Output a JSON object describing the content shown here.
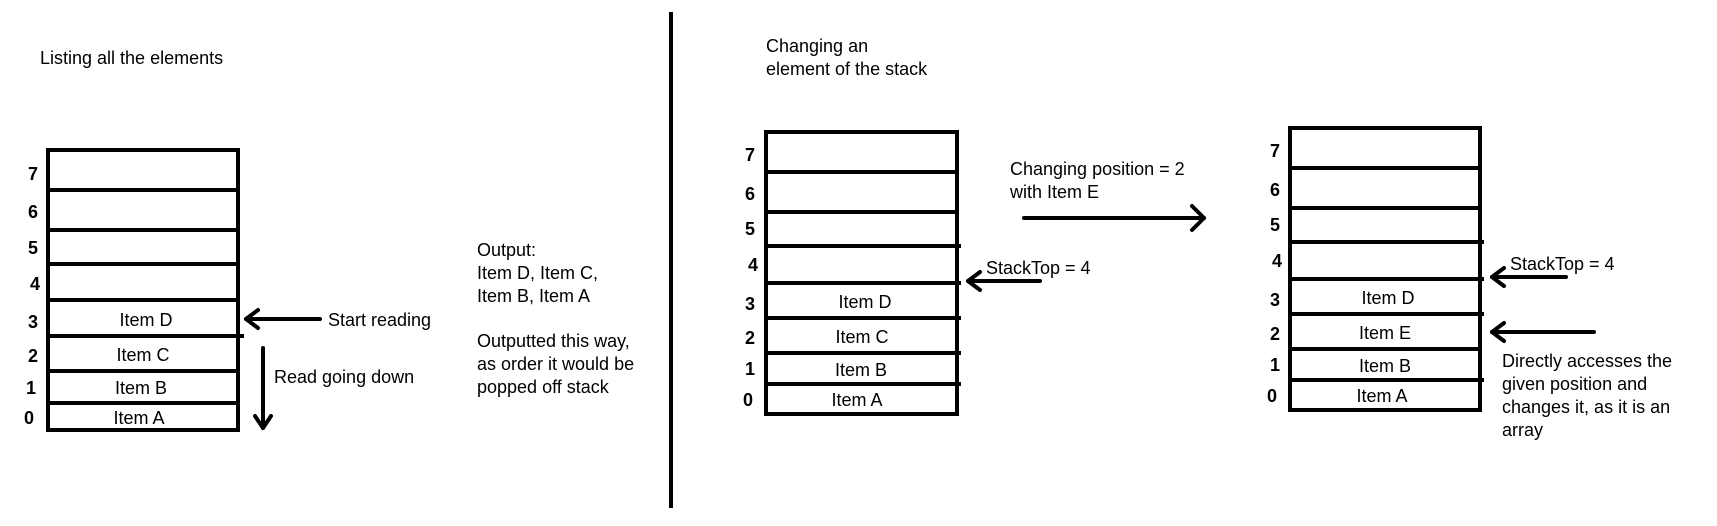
{
  "left": {
    "title": "Listing all the elements",
    "indices": [
      "0",
      "1",
      "2",
      "3",
      "4",
      "5",
      "6",
      "7"
    ],
    "cells": [
      "Item A",
      "Item B",
      "Item C",
      "Item D",
      "",
      "",
      "",
      ""
    ],
    "start_reading": "Start reading",
    "read_down": "Read going down",
    "output_lines": [
      "Output:",
      "Item D, Item C,",
      "Item B, Item A"
    ],
    "note_lines": [
      "Outputted this way,",
      "as order it would be",
      "popped off stack"
    ]
  },
  "right": {
    "title_lines": [
      "Changing an",
      "element of the stack"
    ],
    "before": {
      "indices": [
        "0",
        "1",
        "2",
        "3",
        "4",
        "5",
        "6",
        "7"
      ],
      "cells": [
        "Item A",
        "Item B",
        "Item C",
        "Item D",
        "",
        "",
        "",
        ""
      ],
      "stacktop": "StackTop = 4"
    },
    "change_lines": [
      "Changing position = 2",
      "with Item E"
    ],
    "after": {
      "indices": [
        "0",
        "1",
        "2",
        "3",
        "4",
        "5",
        "6",
        "7"
      ],
      "cells": [
        "Item A",
        "Item B",
        "Item E",
        "Item D",
        "",
        "",
        "",
        ""
      ],
      "stacktop": "StackTop = 4",
      "note_lines": [
        "Directly accesses the",
        "given position and",
        "changes it, as it is an",
        "array"
      ]
    }
  }
}
